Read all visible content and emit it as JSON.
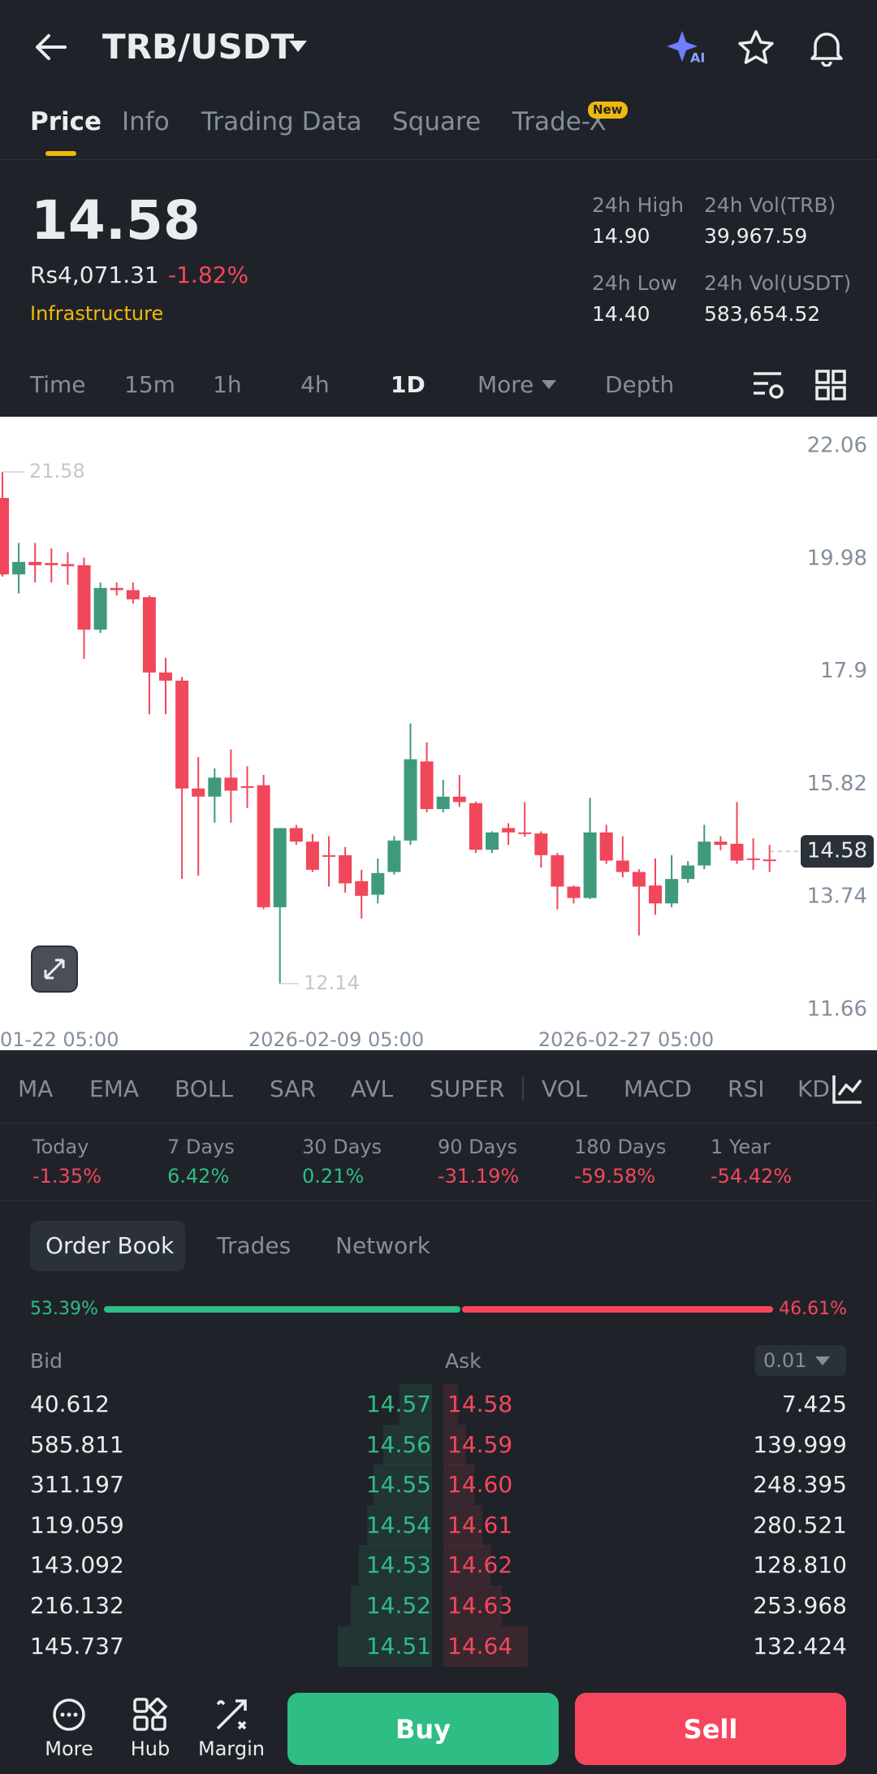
{
  "header": {
    "pair": "TRB/USDT",
    "tabs": [
      "Price",
      "Info",
      "Trading Data",
      "Square",
      "Trade-X"
    ],
    "badge": "New"
  },
  "ticker": {
    "last": "14.58",
    "fiat": "Rs4,071.31",
    "change": "-1.82%",
    "tag": "Infrastructure",
    "stats": [
      {
        "label": "24h High",
        "value": "14.90"
      },
      {
        "label": "24h Vol(TRB)",
        "value": "39,967.59"
      },
      {
        "label": "24h Low",
        "value": "14.40"
      },
      {
        "label": "24h Vol(USDT)",
        "value": "583,654.52"
      }
    ]
  },
  "intervals": [
    "Time",
    "15m",
    "1h",
    "4h",
    "1D",
    "More",
    "Depth"
  ],
  "chart": {
    "type": "candlestick",
    "ylim": [
      11.66,
      22.06
    ],
    "yticks": [
      11.66,
      13.74,
      15.82,
      17.9,
      19.98,
      22.06
    ],
    "dates": [
      "01-22 05:00",
      "2026-02-09 05:00",
      "2026-02-27 05:00"
    ],
    "max_mark": 21.58,
    "min_mark": 12.14,
    "last_price": 14.58,
    "candles": [
      {
        "open": 21.1,
        "high": 21.58,
        "low": 19.65,
        "close": 19.69
      },
      {
        "open": 19.69,
        "high": 20.27,
        "low": 19.34,
        "close": 19.92
      },
      {
        "open": 19.92,
        "high": 20.27,
        "low": 19.54,
        "close": 19.86
      },
      {
        "open": 19.9,
        "high": 20.17,
        "low": 19.54,
        "close": 19.86
      },
      {
        "open": 19.88,
        "high": 20.1,
        "low": 19.5,
        "close": 19.84
      },
      {
        "open": 19.86,
        "high": 20.0,
        "low": 18.13,
        "close": 18.67
      },
      {
        "open": 18.67,
        "high": 19.54,
        "low": 18.61,
        "close": 19.44
      },
      {
        "open": 19.44,
        "high": 19.54,
        "low": 19.3,
        "close": 19.4
      },
      {
        "open": 19.4,
        "high": 19.54,
        "low": 19.15,
        "close": 19.23
      },
      {
        "open": 19.27,
        "high": 19.3,
        "low": 17.11,
        "close": 17.88
      },
      {
        "open": 17.88,
        "high": 18.15,
        "low": 17.11,
        "close": 17.73
      },
      {
        "open": 17.73,
        "high": 17.8,
        "low": 14.07,
        "close": 15.74
      },
      {
        "open": 15.74,
        "high": 16.32,
        "low": 14.13,
        "close": 15.59
      },
      {
        "open": 15.59,
        "high": 16.11,
        "low": 15.11,
        "close": 15.94
      },
      {
        "open": 15.94,
        "high": 16.46,
        "low": 15.11,
        "close": 15.7
      },
      {
        "open": 15.78,
        "high": 16.15,
        "low": 15.38,
        "close": 15.76
      },
      {
        "open": 15.8,
        "high": 15.99,
        "low": 13.51,
        "close": 13.55
      },
      {
        "open": 13.55,
        "high": 15.01,
        "low": 12.14,
        "close": 15.01
      },
      {
        "open": 15.01,
        "high": 15.07,
        "low": 14.7,
        "close": 14.76
      },
      {
        "open": 14.76,
        "high": 14.9,
        "low": 14.2,
        "close": 14.24
      },
      {
        "open": 14.51,
        "high": 14.86,
        "low": 13.93,
        "close": 14.49
      },
      {
        "open": 14.51,
        "high": 14.66,
        "low": 13.82,
        "close": 13.99
      },
      {
        "open": 14.03,
        "high": 14.24,
        "low": 13.34,
        "close": 13.76
      },
      {
        "open": 13.78,
        "high": 14.45,
        "low": 13.62,
        "close": 14.18
      },
      {
        "open": 14.2,
        "high": 14.86,
        "low": 14.15,
        "close": 14.78
      },
      {
        "open": 14.78,
        "high": 16.94,
        "low": 14.7,
        "close": 16.28
      },
      {
        "open": 16.24,
        "high": 16.59,
        "low": 15.3,
        "close": 15.36
      },
      {
        "open": 15.36,
        "high": 15.9,
        "low": 15.3,
        "close": 15.59
      },
      {
        "open": 15.59,
        "high": 15.99,
        "low": 15.4,
        "close": 15.49
      },
      {
        "open": 15.47,
        "high": 15.5,
        "low": 14.55,
        "close": 14.61
      },
      {
        "open": 14.61,
        "high": 14.95,
        "low": 14.55,
        "close": 14.93
      },
      {
        "open": 15.01,
        "high": 15.1,
        "low": 14.7,
        "close": 14.93
      },
      {
        "open": 14.93,
        "high": 15.49,
        "low": 14.85,
        "close": 14.91
      },
      {
        "open": 14.91,
        "high": 14.95,
        "low": 14.28,
        "close": 14.51
      },
      {
        "open": 14.51,
        "high": 14.55,
        "low": 13.51,
        "close": 13.93
      },
      {
        "open": 13.93,
        "high": 13.95,
        "low": 13.62,
        "close": 13.72
      },
      {
        "open": 13.72,
        "high": 15.57,
        "low": 13.7,
        "close": 14.93
      },
      {
        "open": 14.93,
        "high": 15.07,
        "low": 14.35,
        "close": 14.41
      },
      {
        "open": 14.41,
        "high": 14.86,
        "low": 14.1,
        "close": 14.2
      },
      {
        "open": 14.2,
        "high": 14.25,
        "low": 13.03,
        "close": 13.93
      },
      {
        "open": 13.95,
        "high": 14.45,
        "low": 13.41,
        "close": 13.62
      },
      {
        "open": 13.62,
        "high": 14.51,
        "low": 13.55,
        "close": 14.07
      },
      {
        "open": 14.07,
        "high": 14.4,
        "low": 14.0,
        "close": 14.32
      },
      {
        "open": 14.32,
        "high": 15.07,
        "low": 14.25,
        "close": 14.76
      },
      {
        "open": 14.76,
        "high": 14.86,
        "low": 14.6,
        "close": 14.7
      },
      {
        "open": 14.72,
        "high": 15.49,
        "low": 14.35,
        "close": 14.41
      },
      {
        "open": 14.45,
        "high": 14.82,
        "low": 14.24,
        "close": 14.43
      },
      {
        "open": 14.43,
        "high": 14.7,
        "low": 14.2,
        "close": 14.41
      }
    ]
  },
  "indicators": [
    "MA",
    "EMA",
    "BOLL",
    "SAR",
    "AVL",
    "SUPER",
    "VOL",
    "MACD",
    "RSI",
    "KD"
  ],
  "performance": [
    {
      "label": "Today",
      "value": "-1.35%"
    },
    {
      "label": "7 Days",
      "value": "6.42%"
    },
    {
      "label": "30 Days",
      "value": "0.21%"
    },
    {
      "label": "90 Days",
      "value": "-31.19%"
    },
    {
      "label": "180 Days",
      "value": "-59.58%"
    },
    {
      "label": "1 Year",
      "value": "-54.42%"
    }
  ],
  "book_tabs": [
    "Order Book",
    "Trades",
    "Network"
  ],
  "order_book": {
    "bid_ratio": 53.39,
    "bid_ratio_label": "53.39%",
    "ask_ratio": 46.61,
    "ask_ratio_label": "46.61%",
    "bid_header": "Bid",
    "ask_header": "Ask",
    "precision": "0.01",
    "bids": [
      {
        "qty": "40.612",
        "price": "14.57"
      },
      {
        "qty": "585.811",
        "price": "14.56"
      },
      {
        "qty": "311.197",
        "price": "14.55"
      },
      {
        "qty": "119.059",
        "price": "14.54"
      },
      {
        "qty": "143.092",
        "price": "14.53"
      },
      {
        "qty": "216.132",
        "price": "14.52"
      },
      {
        "qty": "145.737",
        "price": "14.51"
      }
    ],
    "asks": [
      {
        "price": "14.58",
        "qty": "7.425"
      },
      {
        "price": "14.59",
        "qty": "139.999"
      },
      {
        "price": "14.60",
        "qty": "248.395"
      },
      {
        "price": "14.61",
        "qty": "280.521"
      },
      {
        "price": "14.62",
        "qty": "128.810"
      },
      {
        "price": "14.63",
        "qty": "253.968"
      },
      {
        "price": "14.64",
        "qty": "132.424"
      }
    ]
  },
  "nav": [
    "More",
    "Hub",
    "Margin"
  ],
  "buttons": {
    "buy": "Buy",
    "sell": "Sell"
  }
}
